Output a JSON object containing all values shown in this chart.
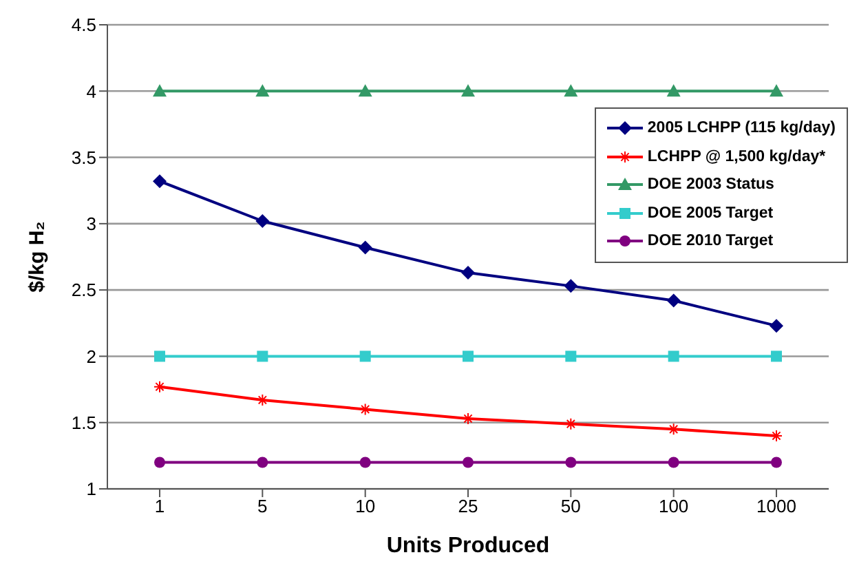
{
  "chart_data": {
    "type": "line",
    "xlabel": "Units Produced",
    "ylabel": "$/kg H₂",
    "categories": [
      "1",
      "5",
      "10",
      "25",
      "50",
      "100",
      "1000"
    ],
    "ylim": [
      1,
      4.5
    ],
    "yticks": [
      1,
      1.5,
      2,
      2.5,
      3,
      3.5,
      4,
      4.5
    ],
    "grid": "y",
    "legend": "top right",
    "series": [
      {
        "name": "2005 LCHPP (115 kg/day)",
        "color": "#000080",
        "marker": "diamond",
        "values": [
          3.32,
          3.02,
          2.82,
          2.63,
          2.53,
          2.42,
          2.23
        ]
      },
      {
        "name": "LCHPP @ 1,500 kg/day*",
        "color": "#ff0000",
        "marker": "cross",
        "values": [
          1.77,
          1.67,
          1.6,
          1.53,
          1.49,
          1.45,
          1.4
        ]
      },
      {
        "name": "DOE 2003 Status",
        "color": "#339966",
        "marker": "triangle",
        "values": [
          4,
          4,
          4,
          4,
          4,
          4,
          4
        ]
      },
      {
        "name": "DOE 2005 Target",
        "color": "#33cccc",
        "marker": "square",
        "values": [
          2,
          2,
          2,
          2,
          2,
          2,
          2
        ]
      },
      {
        "name": "DOE 2010 Target",
        "color": "#800080",
        "marker": "circle",
        "values": [
          1.2,
          1.2,
          1.2,
          1.2,
          1.2,
          1.2,
          1.2
        ]
      }
    ]
  }
}
